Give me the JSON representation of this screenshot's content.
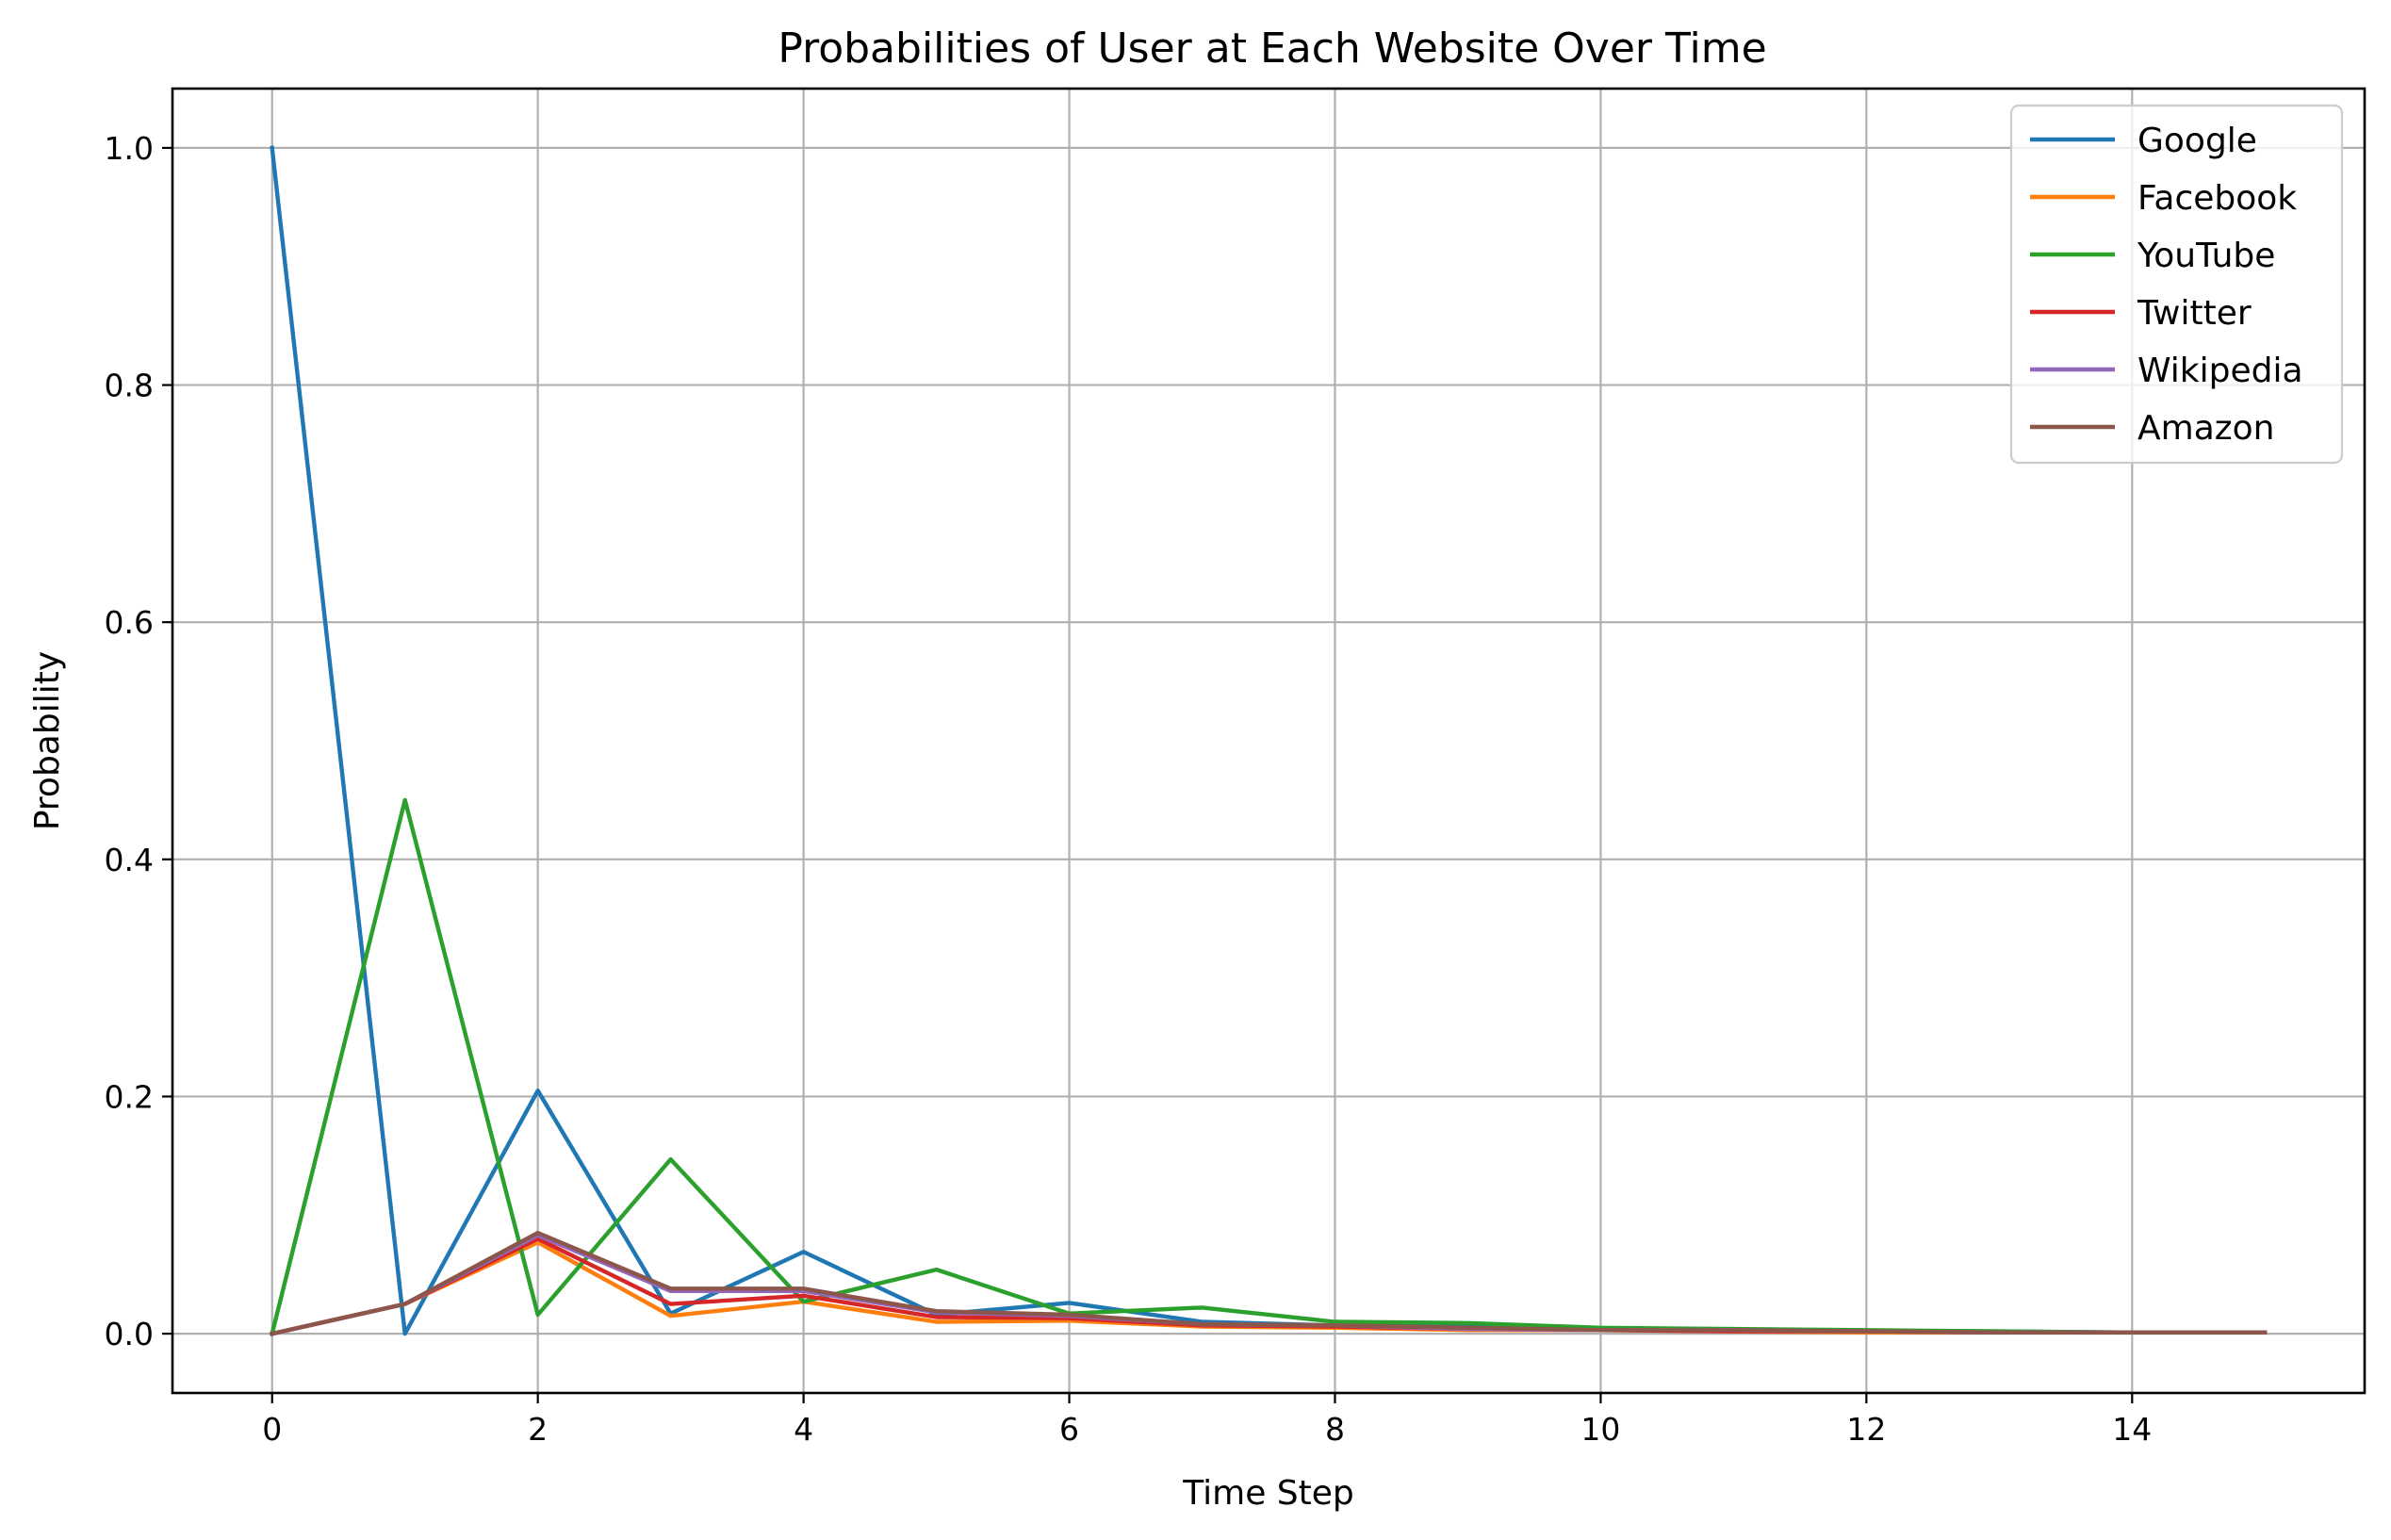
{
  "chart_data": {
    "type": "line",
    "title": "Probabilities of User at Each Website Over Time",
    "xlabel": "Time Step",
    "ylabel": "Probability",
    "xlim": [
      -0.75,
      15.75
    ],
    "ylim": [
      -0.05,
      1.05
    ],
    "xticks": [
      0,
      2,
      4,
      6,
      8,
      10,
      12,
      14
    ],
    "xtick_labels": [
      "0",
      "2",
      "4",
      "6",
      "8",
      "10",
      "12",
      "14"
    ],
    "yticks": [
      0.0,
      0.2,
      0.4,
      0.6,
      0.8,
      1.0
    ],
    "ytick_labels": [
      "0.0",
      "0.2",
      "0.4",
      "0.6",
      "0.8",
      "1.0"
    ],
    "grid": true,
    "legend_position": "top-right",
    "x": [
      0,
      1,
      2,
      3,
      4,
      5,
      6,
      7,
      8,
      9,
      10,
      11,
      12,
      13,
      14,
      15
    ],
    "series": [
      {
        "name": "Google",
        "color": "#1f77b4",
        "values": [
          1.0,
          0.0,
          0.205,
          0.017,
          0.069,
          0.016,
          0.026,
          0.01,
          0.007,
          0.006,
          0.004,
          0.003,
          0.002,
          0.002,
          0.001,
          0.001
        ]
      },
      {
        "name": "Facebook",
        "color": "#ff7f0e",
        "values": [
          0.0,
          0.025,
          0.077,
          0.015,
          0.027,
          0.01,
          0.011,
          0.006,
          0.005,
          0.003,
          0.003,
          0.002,
          0.001,
          0.001,
          0.001,
          0.001
        ]
      },
      {
        "name": "YouTube",
        "color": "#2ca02c",
        "values": [
          0.0,
          0.45,
          0.016,
          0.147,
          0.027,
          0.054,
          0.017,
          0.022,
          0.01,
          0.009,
          0.005,
          0.004,
          0.003,
          0.002,
          0.001,
          0.001
        ]
      },
      {
        "name": "Twitter",
        "color": "#d62728",
        "values": [
          0.0,
          0.025,
          0.08,
          0.025,
          0.032,
          0.014,
          0.013,
          0.007,
          0.006,
          0.004,
          0.003,
          0.002,
          0.002,
          0.001,
          0.001,
          0.001
        ]
      },
      {
        "name": "Wikipedia",
        "color": "#9467bd",
        "values": [
          0.0,
          0.025,
          0.083,
          0.036,
          0.036,
          0.018,
          0.015,
          0.008,
          0.007,
          0.004,
          0.003,
          0.003,
          0.002,
          0.001,
          0.001,
          0.001
        ]
      },
      {
        "name": "Amazon",
        "color": "#8c564b",
        "values": [
          0.0,
          0.025,
          0.085,
          0.038,
          0.038,
          0.019,
          0.016,
          0.008,
          0.007,
          0.005,
          0.003,
          0.003,
          0.002,
          0.001,
          0.001,
          0.001
        ]
      }
    ]
  }
}
